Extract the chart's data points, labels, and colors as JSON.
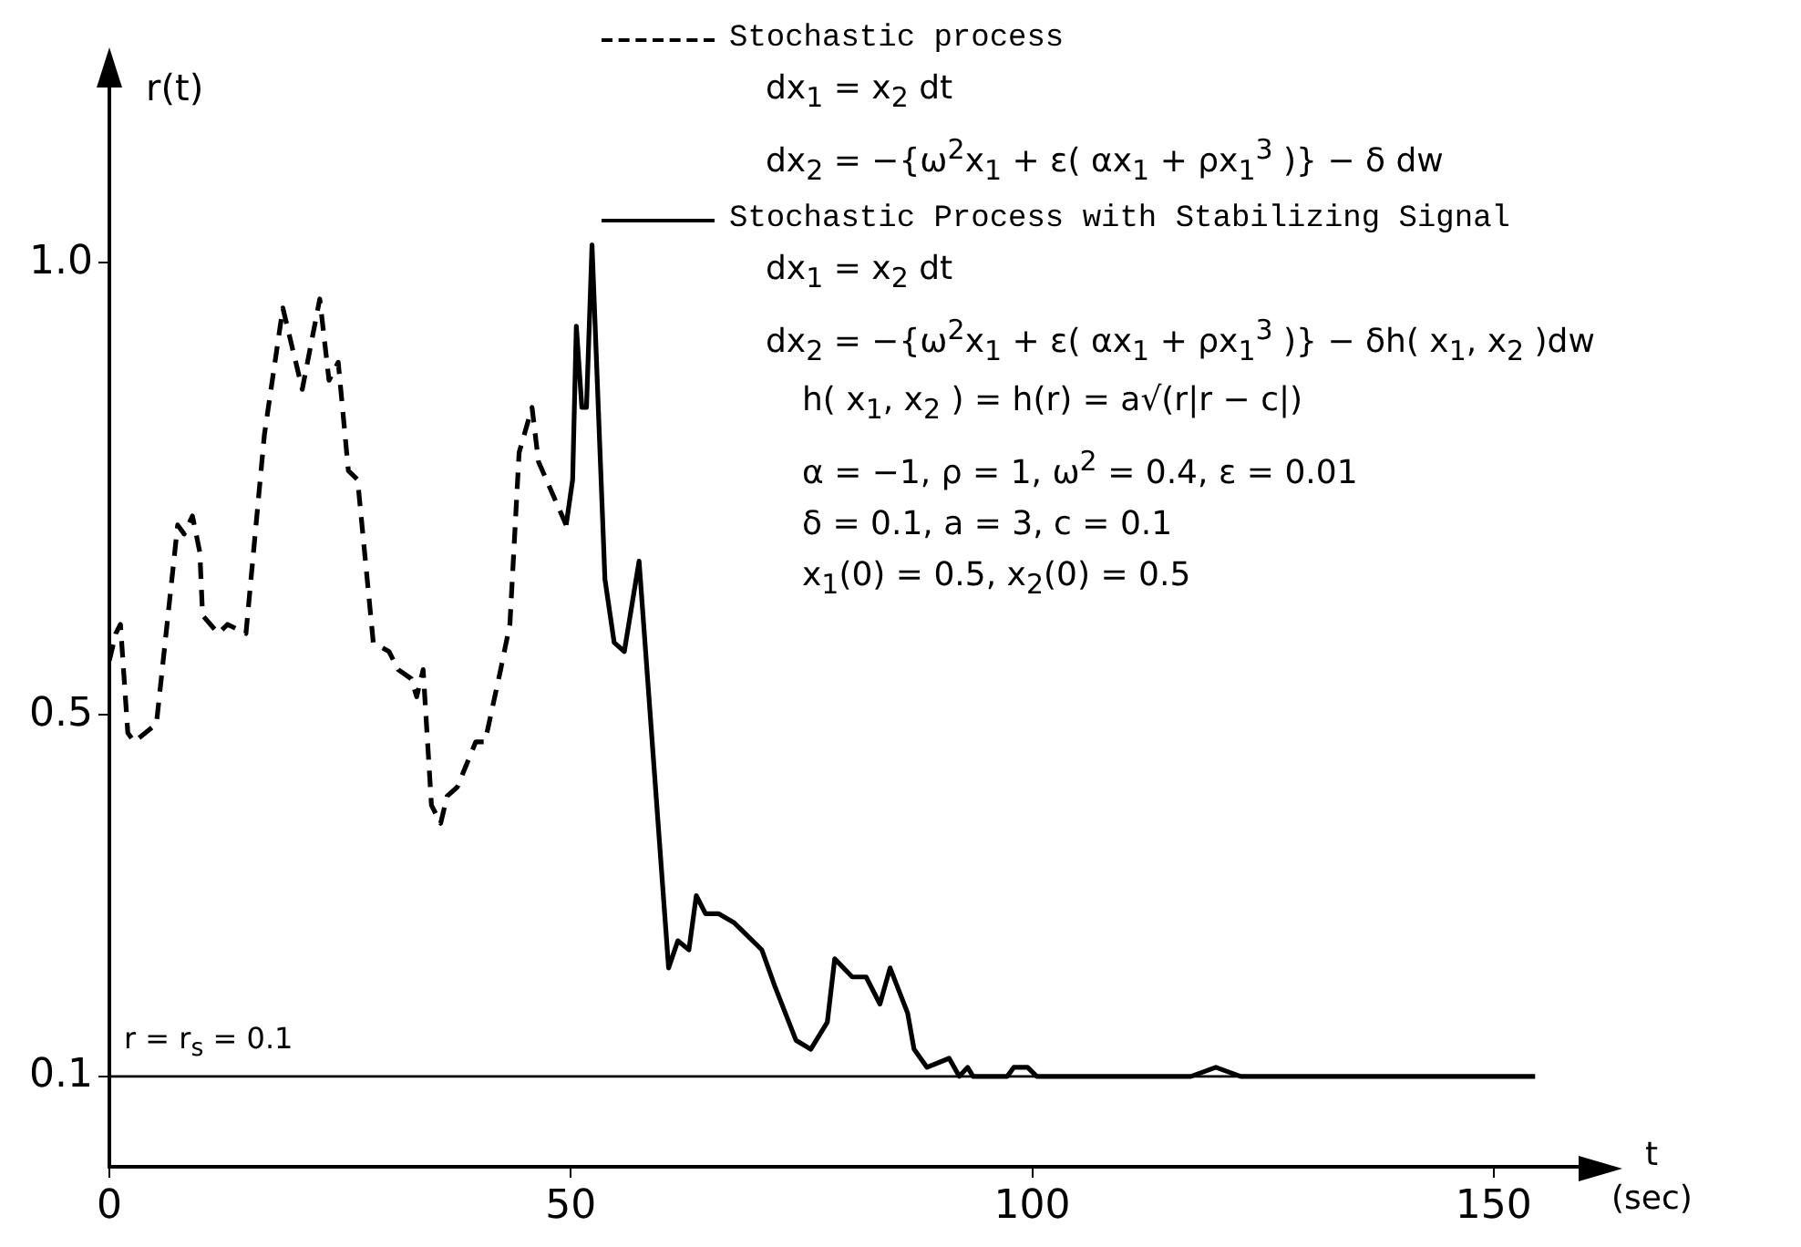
{
  "chart_data": {
    "type": "line",
    "xlabel": "t (sec)",
    "ylabel": "r(t)",
    "xlim": [
      0,
      160
    ],
    "xticks": [
      0,
      50,
      100,
      150
    ],
    "ylim": [
      0,
      1.2
    ],
    "yticks": [
      {
        "value": 0.1,
        "label": "0.1"
      },
      {
        "value": 0.5,
        "label": "0.5"
      },
      {
        "value": 1,
        "label": "1.0"
      }
    ],
    "grid": false,
    "legend": "top right",
    "marker": "none",
    "series": [
      {
        "name": "Stochastic process",
        "color": "#000000",
        "line_style": "dashed",
        "x": [
          0,
          0.7,
          1.2,
          2,
          2.7,
          5.1,
          7.4,
          8.1,
          9.0,
          9.8,
          10.1,
          11.8,
          12.8,
          14.8,
          16.8,
          18.8,
          20.9,
          22.8,
          23.8,
          24.8,
          25.9,
          26.9,
          28.6,
          30.3,
          31.3,
          32.7,
          33.3,
          34.0,
          34.9,
          35.9,
          36.6,
          37.7,
          39.7,
          40.7,
          42.4,
          43.4,
          44.4,
          45.8,
          46.5,
          49.5
        ],
        "values": [
          0.56,
          0.59,
          0.6,
          0.48,
          0.47,
          0.49,
          0.71,
          0.7,
          0.72,
          0.68,
          0.61,
          0.59,
          0.6,
          0.59,
          0.81,
          0.95,
          0.86,
          0.96,
          0.87,
          0.89,
          0.77,
          0.76,
          0.58,
          0.57,
          0.55,
          0.54,
          0.52,
          0.55,
          0.4,
          0.38,
          0.41,
          0.42,
          0.47,
          0.47,
          0.55,
          0.6,
          0.79,
          0.84,
          0.78,
          0.71
        ]
      },
      {
        "name": "Stochastic Process with Stabilizing Signal",
        "color": "#000000",
        "line_style": "solid",
        "x": [
          49.5,
          50.2,
          50.6,
          51.2,
          51.7,
          52.3,
          53.7,
          54.7,
          55.8,
          57.4,
          60.6,
          61.6,
          62.8,
          63.6,
          64.6,
          66.0,
          67.7,
          70.7,
          72.1,
          74.4,
          76.0,
          77.8,
          78.6,
          80.5,
          82.0,
          83.5,
          84.6,
          86.5,
          87.2,
          88.6,
          91.0,
          92.1,
          93.0,
          93.6,
          97.3,
          98.0,
          99.5,
          100.5,
          117.2,
          119.9,
          122.6,
          154.5
        ],
        "values": [
          0.71,
          0.76,
          0.93,
          0.84,
          0.84,
          1.02,
          0.65,
          0.58,
          0.57,
          0.67,
          0.22,
          0.25,
          0.24,
          0.3,
          0.28,
          0.28,
          0.27,
          0.24,
          0.2,
          0.14,
          0.13,
          0.16,
          0.23,
          0.21,
          0.21,
          0.18,
          0.22,
          0.17,
          0.13,
          0.11,
          0.12,
          0.1,
          0.11,
          0.1,
          0.1,
          0.11,
          0.11,
          0.1,
          0.1,
          0.11,
          0.1,
          0.1
        ]
      }
    ],
    "ref_lines": [
      {
        "axis": "y",
        "value": 0.1,
        "label": "r = r$_{s}$ = 0.1",
        "color": "#000000"
      }
    ],
    "annotations": [
      "dx$_{1}$ = x$_{2}$ dt",
      "dx$_{2}$ = −{ω$^{2}$x$_{1}$ + ε( αx$_{1}$ + ρx$_{1}$$^{3}$ )} − δ dw",
      "dx$_{1}$ = x$_{2}$ dt",
      "dx$_{2}$ = −{ω$^{2}$x$_{1}$ + ε( αx$_{1}$ + ρx$_{1}$$^{3}$ )} − δh( x$_{1}$, x$_{2}$ )dw",
      "h( x$_{1}$, x$_{2}$ ) = h(r) = a√(r|r − c|)",
      "α = −1,  ρ = 1,  ω$^{2}$ = 0.4,  ε = 0.01",
      "δ = 0.1,  a = 3,  c = 0.1",
      "x$_{1}$(0) = 0.5,  x$_{2}$(0) = 0.5"
    ]
  }
}
